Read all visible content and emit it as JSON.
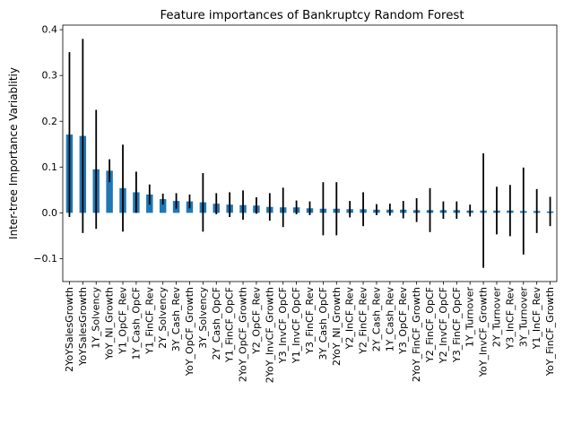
{
  "chart_data": {
    "type": "bar",
    "title": "Feature importances of Bankruptcy Random Forest",
    "xlabel": "",
    "ylabel": "Inter-tree Importance Variablitiy",
    "ylim": [
      -0.15,
      0.41
    ],
    "yticks": [
      -0.1,
      0.0,
      0.1,
      0.2,
      0.3,
      0.4
    ],
    "ytick_labels": [
      "−0.1",
      "0.0",
      "0.1",
      "0.2",
      "0.3",
      "0.4"
    ],
    "bar_color": "#1f77b4",
    "error_color": "#000000",
    "grid": false,
    "categories": [
      "2YoYSalesGrowth",
      "YoYSalesGrowth",
      "1Y_Solvency",
      "YoY_NI_Growth",
      "Y1_OpCF_Rev",
      "1Y_Cash_OpCF",
      "Y1_FinCF_Rev",
      "2Y_Solvency",
      "3Y_Cash_Rev",
      "YoY_OpCF_Growth",
      "3Y_Solvency",
      "2Y_Cash_OpCF",
      "Y1_FinCF_OpCF",
      "2YoY_OpCF_Growth",
      "Y2_OpCF_Rev",
      "2YoY_InvCF_Growth",
      "Y3_InvCF_OpCF",
      "Y1_InvCF_OpCF",
      "Y3_FinCF_Rev",
      "3Y_Cash_OpCF",
      "2YoY_NI_Growth",
      "Y2_InCF_Rev",
      "Y2_FinCF_Rev",
      "2Y_Cash_Rev",
      "1Y_Cash_Rev",
      "Y3_OpCF_Rev",
      "2YoY_FinCF_Growth",
      "Y2_FinCF_OpCF",
      "Y2_InvCF_OpCF",
      "Y3_FinCF_OpCF",
      "1Y_Turnover",
      "YoY_InvCF_Growth",
      "2Y_Turnover",
      "Y3_InCF_Rev",
      "3Y_Turnover",
      "Y1_InCF_Rev",
      "YoY_FinCF_Growth"
    ],
    "values": [
      0.171,
      0.168,
      0.095,
      0.092,
      0.054,
      0.045,
      0.04,
      0.03,
      0.026,
      0.025,
      0.023,
      0.02,
      0.018,
      0.017,
      0.016,
      0.013,
      0.012,
      0.012,
      0.01,
      0.009,
      0.009,
      0.008,
      0.008,
      0.007,
      0.007,
      0.007,
      0.006,
      0.006,
      0.006,
      0.006,
      0.005,
      0.005,
      0.005,
      0.005,
      0.004,
      0.004,
      0.003
    ],
    "errors": [
      0.18,
      0.212,
      0.13,
      0.025,
      0.095,
      0.045,
      0.022,
      0.012,
      0.017,
      0.015,
      0.064,
      0.023,
      0.027,
      0.032,
      0.018,
      0.03,
      0.043,
      0.015,
      0.015,
      0.058,
      0.058,
      0.018,
      0.037,
      0.012,
      0.013,
      0.019,
      0.026,
      0.048,
      0.019,
      0.019,
      0.013,
      0.125,
      0.052,
      0.056,
      0.095,
      0.048,
      0.032
    ]
  }
}
